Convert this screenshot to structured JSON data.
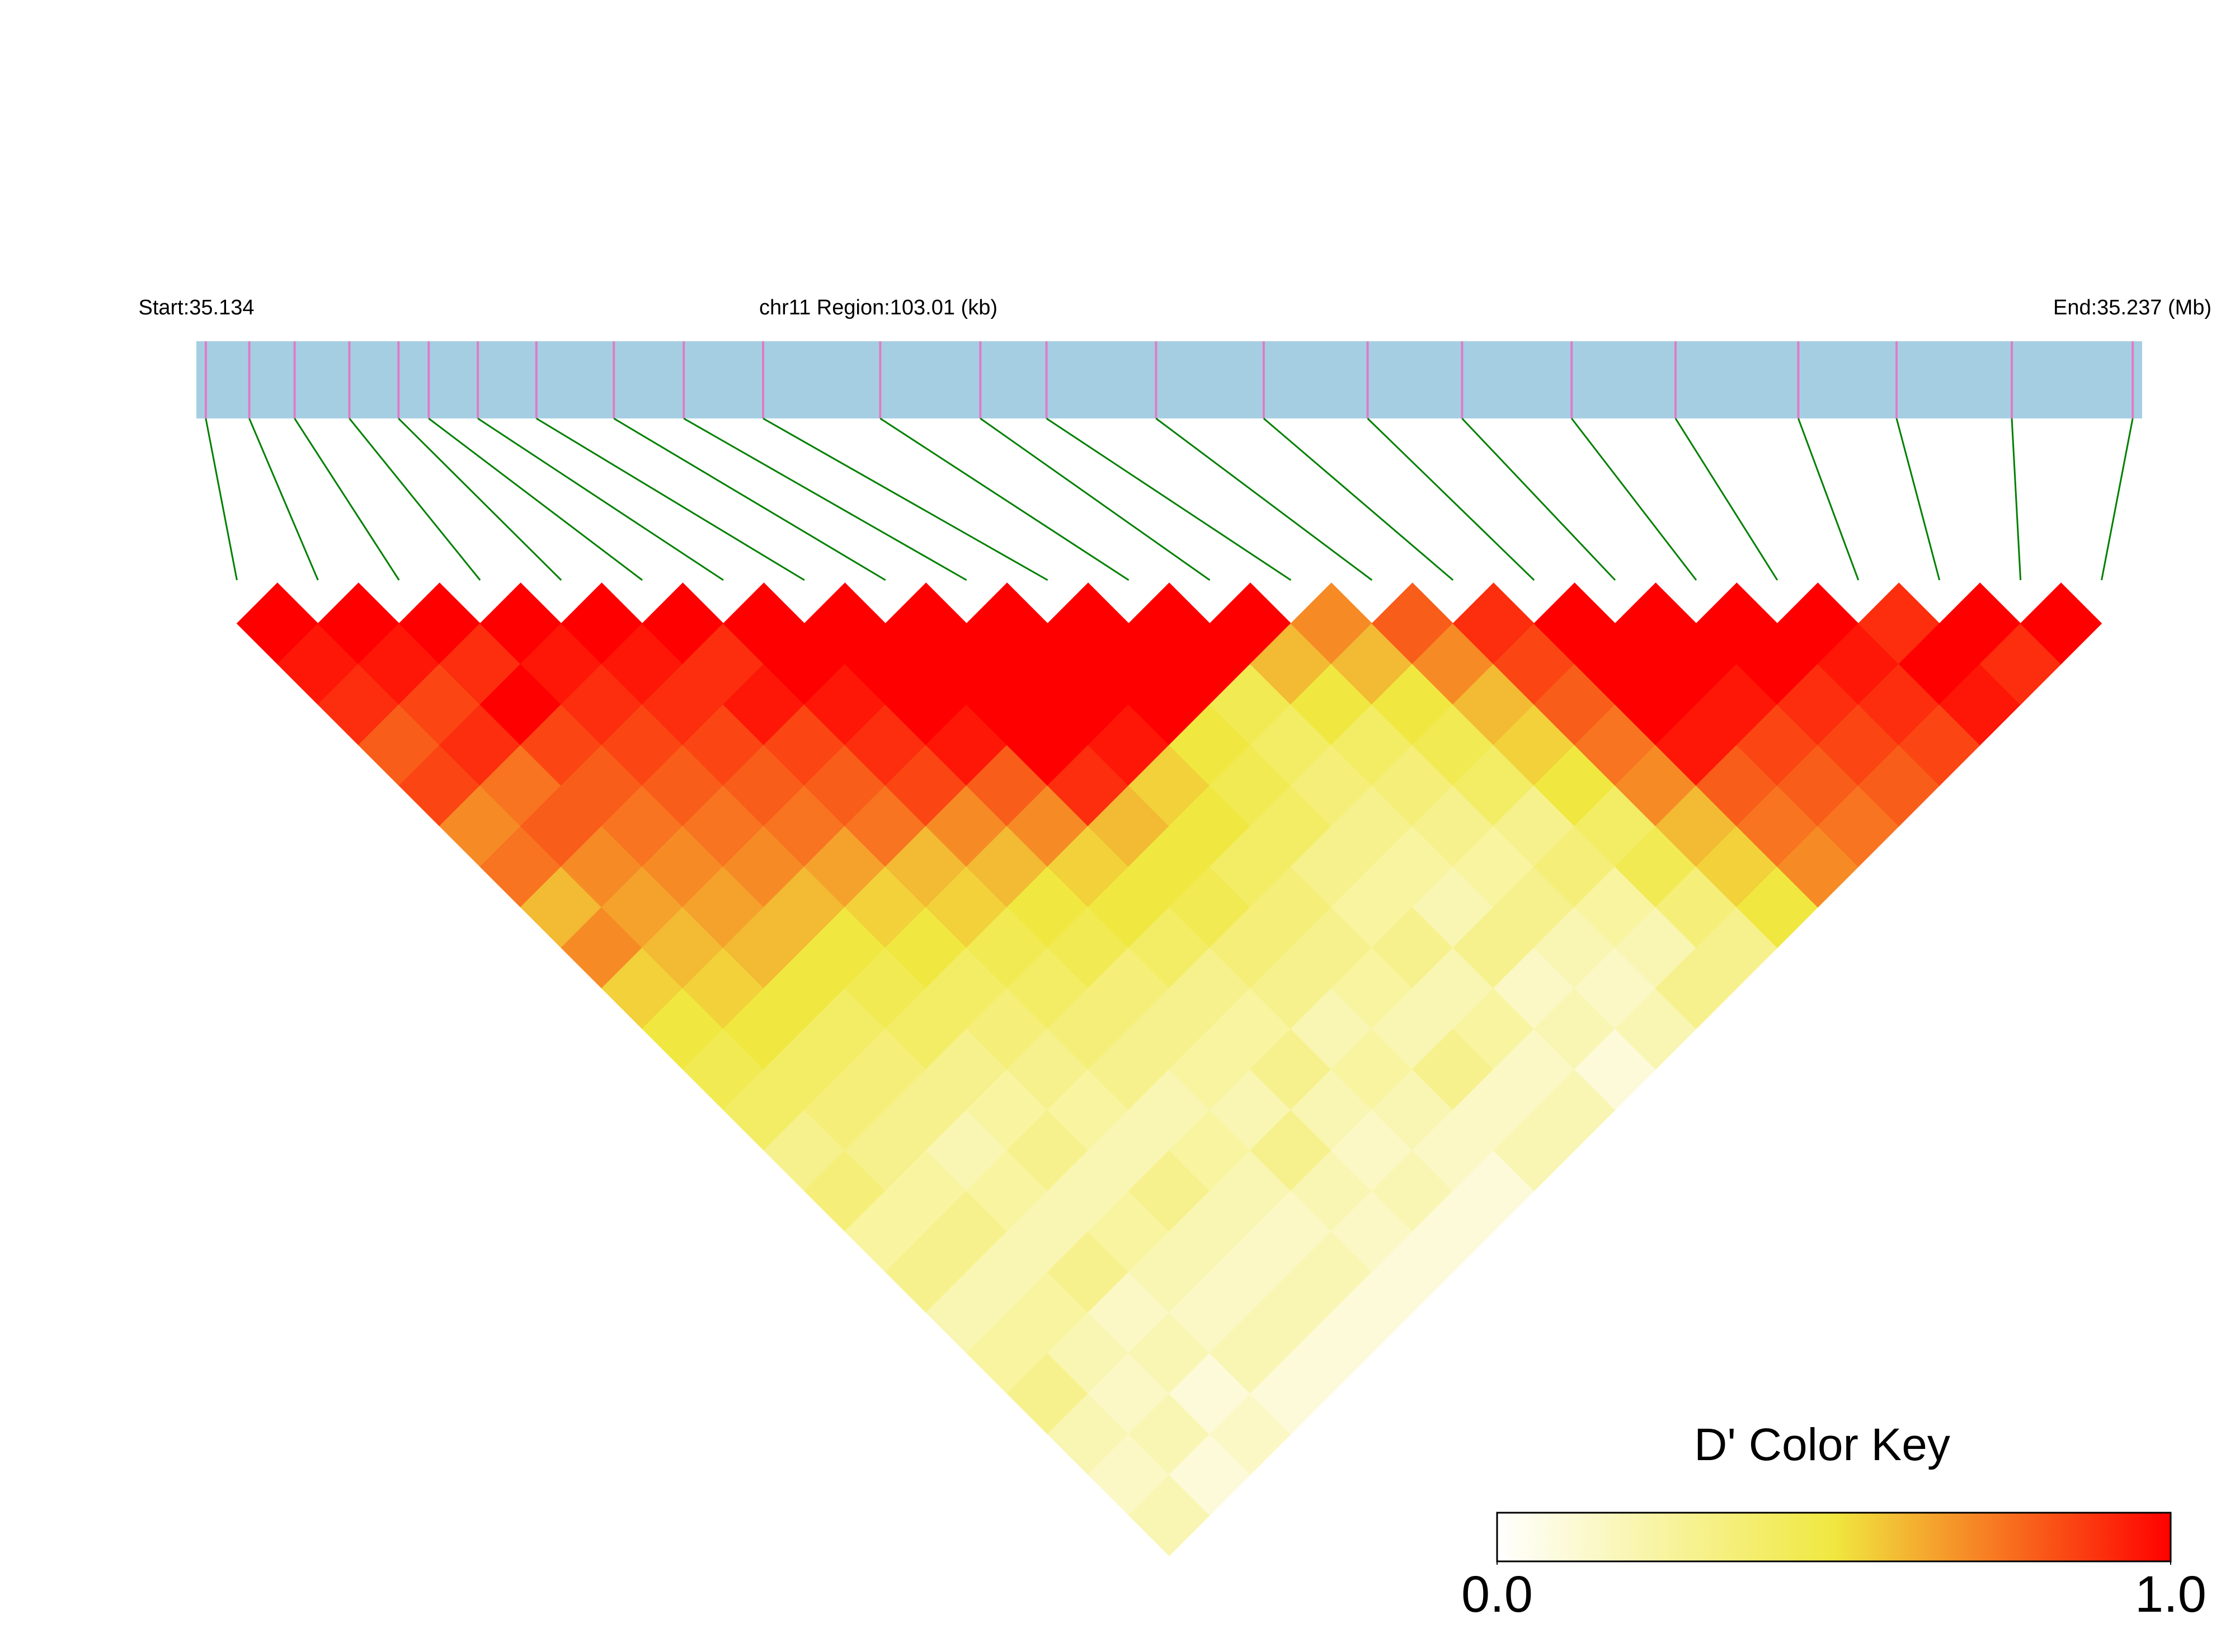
{
  "chart_data": {
    "type": "ld_heatmap",
    "start_label": "Start:35.134",
    "region_label": "chr11 Region:103.01 (kb)",
    "end_label": "End:35.237 (Mb)",
    "xlim": [
      35.134,
      35.237
    ],
    "snp_positions": [
      35.1345,
      35.1368,
      35.1392,
      35.1421,
      35.1447,
      35.1463,
      35.1489,
      35.152,
      35.1561,
      35.1598,
      35.164,
      35.1702,
      35.1755,
      35.179,
      35.1848,
      35.1905,
      35.196,
      35.201,
      35.2068,
      35.2123,
      35.2188,
      35.224,
      35.2301,
      35.2365
    ],
    "ld_matrix": [
      [
        1,
        0.95,
        0.9,
        0.8,
        0.85,
        0.7,
        0.75,
        0.6,
        0.7,
        0.55,
        0.5,
        0.45,
        0.4,
        0.3,
        0.35,
        0.25,
        0.3,
        0.2,
        0.25,
        0.3,
        0.2,
        0.15,
        0.2
      ],
      [
        1,
        0.95,
        0.85,
        0.9,
        0.75,
        0.8,
        0.7,
        0.65,
        0.6,
        0.55,
        0.5,
        0.4,
        0.35,
        0.3,
        0.25,
        0.3,
        0.2,
        0.25,
        0.2,
        0.15,
        0.2,
        0.1
      ],
      [
        1,
        0.9,
        1,
        0.85,
        0.8,
        0.75,
        0.7,
        0.65,
        0.6,
        0.5,
        0.4,
        0.35,
        0.3,
        0.2,
        0.25,
        0.2,
        0.3,
        0.15,
        0.2,
        0.1,
        0.15
      ],
      [
        1,
        0.95,
        0.9,
        0.85,
        0.8,
        0.75,
        0.7,
        0.6,
        0.5,
        0.45,
        0.4,
        0.3,
        0.25,
        0.3,
        0.2,
        0.25,
        0.2,
        0.15,
        0.2,
        0.1
      ],
      [
        1,
        0.95,
        0.9,
        0.85,
        0.8,
        0.75,
        0.65,
        0.55,
        0.5,
        0.4,
        0.35,
        0.3,
        0.25,
        0.2,
        0.3,
        0.2,
        0.15,
        0.2,
        0.1
      ],
      [
        1,
        0.9,
        0.95,
        0.85,
        0.8,
        0.75,
        0.6,
        0.55,
        0.45,
        0.4,
        0.35,
        0.3,
        0.2,
        0.25,
        0.2,
        0.15,
        0.2,
        0.1
      ],
      [
        1,
        1,
        0.95,
        0.9,
        0.85,
        0.7,
        0.6,
        0.5,
        0.45,
        0.35,
        0.3,
        0.25,
        0.2,
        0.3,
        0.2,
        0.15,
        0.1
      ],
      [
        1,
        1,
        1,
        0.95,
        0.8,
        0.7,
        0.55,
        0.5,
        0.4,
        0.3,
        0.25,
        0.3,
        0.2,
        0.15,
        0.2,
        0.1
      ],
      [
        1,
        1,
        1,
        1,
        0.9,
        0.6,
        0.5,
        0.45,
        0.35,
        0.3,
        0.2,
        0.25,
        0.2,
        0.15,
        0.1
      ],
      [
        1,
        1,
        1,
        0.95,
        0.55,
        0.5,
        0.4,
        0.35,
        0.3,
        0.25,
        0.2,
        0.3,
        0.15,
        0.2
      ],
      [
        1,
        1,
        1,
        0.5,
        0.45,
        0.4,
        0.3,
        0.25,
        0.3,
        0.2,
        0.25,
        0.15,
        0.2
      ],
      [
        1,
        1,
        0.45,
        0.4,
        0.35,
        0.3,
        0.25,
        0.2,
        0.3,
        0.15,
        0.2,
        0.1
      ],
      [
        1,
        0.6,
        0.5,
        0.4,
        0.35,
        0.3,
        0.25,
        0.3,
        0.2,
        0.15,
        0.2
      ],
      [
        0.7,
        0.6,
        0.5,
        0.45,
        0.4,
        0.3,
        0.35,
        0.25,
        0.2,
        0.3
      ],
      [
        0.8,
        0.7,
        0.6,
        0.55,
        0.5,
        0.4,
        0.45,
        0.35,
        0.3
      ],
      [
        0.9,
        0.85,
        0.8,
        0.75,
        0.7,
        0.6,
        0.55,
        0.5
      ],
      [
        1,
        1,
        1,
        0.95,
        0.8,
        0.75,
        0.7
      ],
      [
        1,
        1,
        0.95,
        0.85,
        0.8,
        0.75
      ],
      [
        1,
        1,
        0.9,
        0.85,
        0.8
      ],
      [
        1,
        0.95,
        0.9,
        0.85
      ],
      [
        0.9,
        1,
        0.95
      ],
      [
        1,
        0.9
      ],
      [
        1
      ]
    ],
    "bar_color": "#a6cee3",
    "snp_color": "#e17ac6",
    "link_color": "#008000",
    "colors": [
      "#ffffff",
      "#f0e840",
      "#ff0000"
    ],
    "color_key": {
      "title": "D' Color Key",
      "lim": [
        0,
        1
      ],
      "ticks": [
        {
          "value": 0,
          "label": "0.0"
        },
        {
          "value": 1,
          "label": "1.0"
        }
      ]
    }
  }
}
